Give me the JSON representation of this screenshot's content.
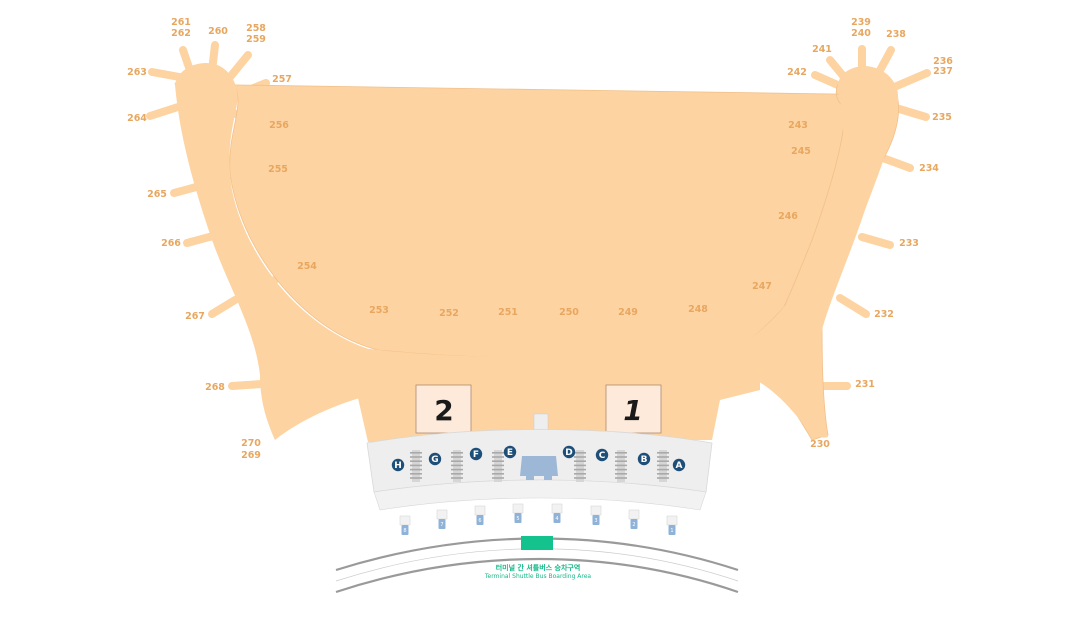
{
  "colors": {
    "concourse_fill": "#fdd3a1",
    "concourse_edge": "#f2c08a",
    "gate_label": "#e8a760",
    "checkin_hall": "#eeeeee",
    "checkin_counter": "#cfcfcf",
    "zone_marker": "#1e4f78",
    "center_block": "#9db8d6",
    "entry_marker": "#8fb3d8",
    "road": "#999999",
    "shuttle": "#14c28e"
  },
  "icons": {
    "zone_marker": "circle-letter-icon",
    "entry_marker": "door-icon",
    "shuttle_stop": "bus-stop-icon"
  },
  "gates": {
    "left_wing": [
      "261",
      "262",
      "260",
      "258",
      "259",
      "263",
      "257",
      "264",
      "256",
      "255",
      "265",
      "266",
      "254",
      "267",
      "268",
      "270",
      "269"
    ],
    "center": [
      "253",
      "252",
      "251",
      "250",
      "249",
      "248"
    ],
    "right_wing": [
      "239",
      "240",
      "238",
      "241",
      "242",
      "236",
      "237",
      "243",
      "235",
      "245",
      "234",
      "246",
      "233",
      "247",
      "232",
      "231",
      "230"
    ]
  },
  "concourses": {
    "left": "2",
    "right": "1"
  },
  "checkin_zones": [
    "H",
    "G",
    "F",
    "E",
    "D",
    "C",
    "B",
    "A"
  ],
  "entrances": [
    "8",
    "7",
    "6",
    "5",
    "4",
    "3",
    "2",
    "1"
  ],
  "shuttle": {
    "label_ko": "터미널 간 셔틀버스 승차구역",
    "label_en": "Terminal Shuttle Bus Boarding Area"
  }
}
